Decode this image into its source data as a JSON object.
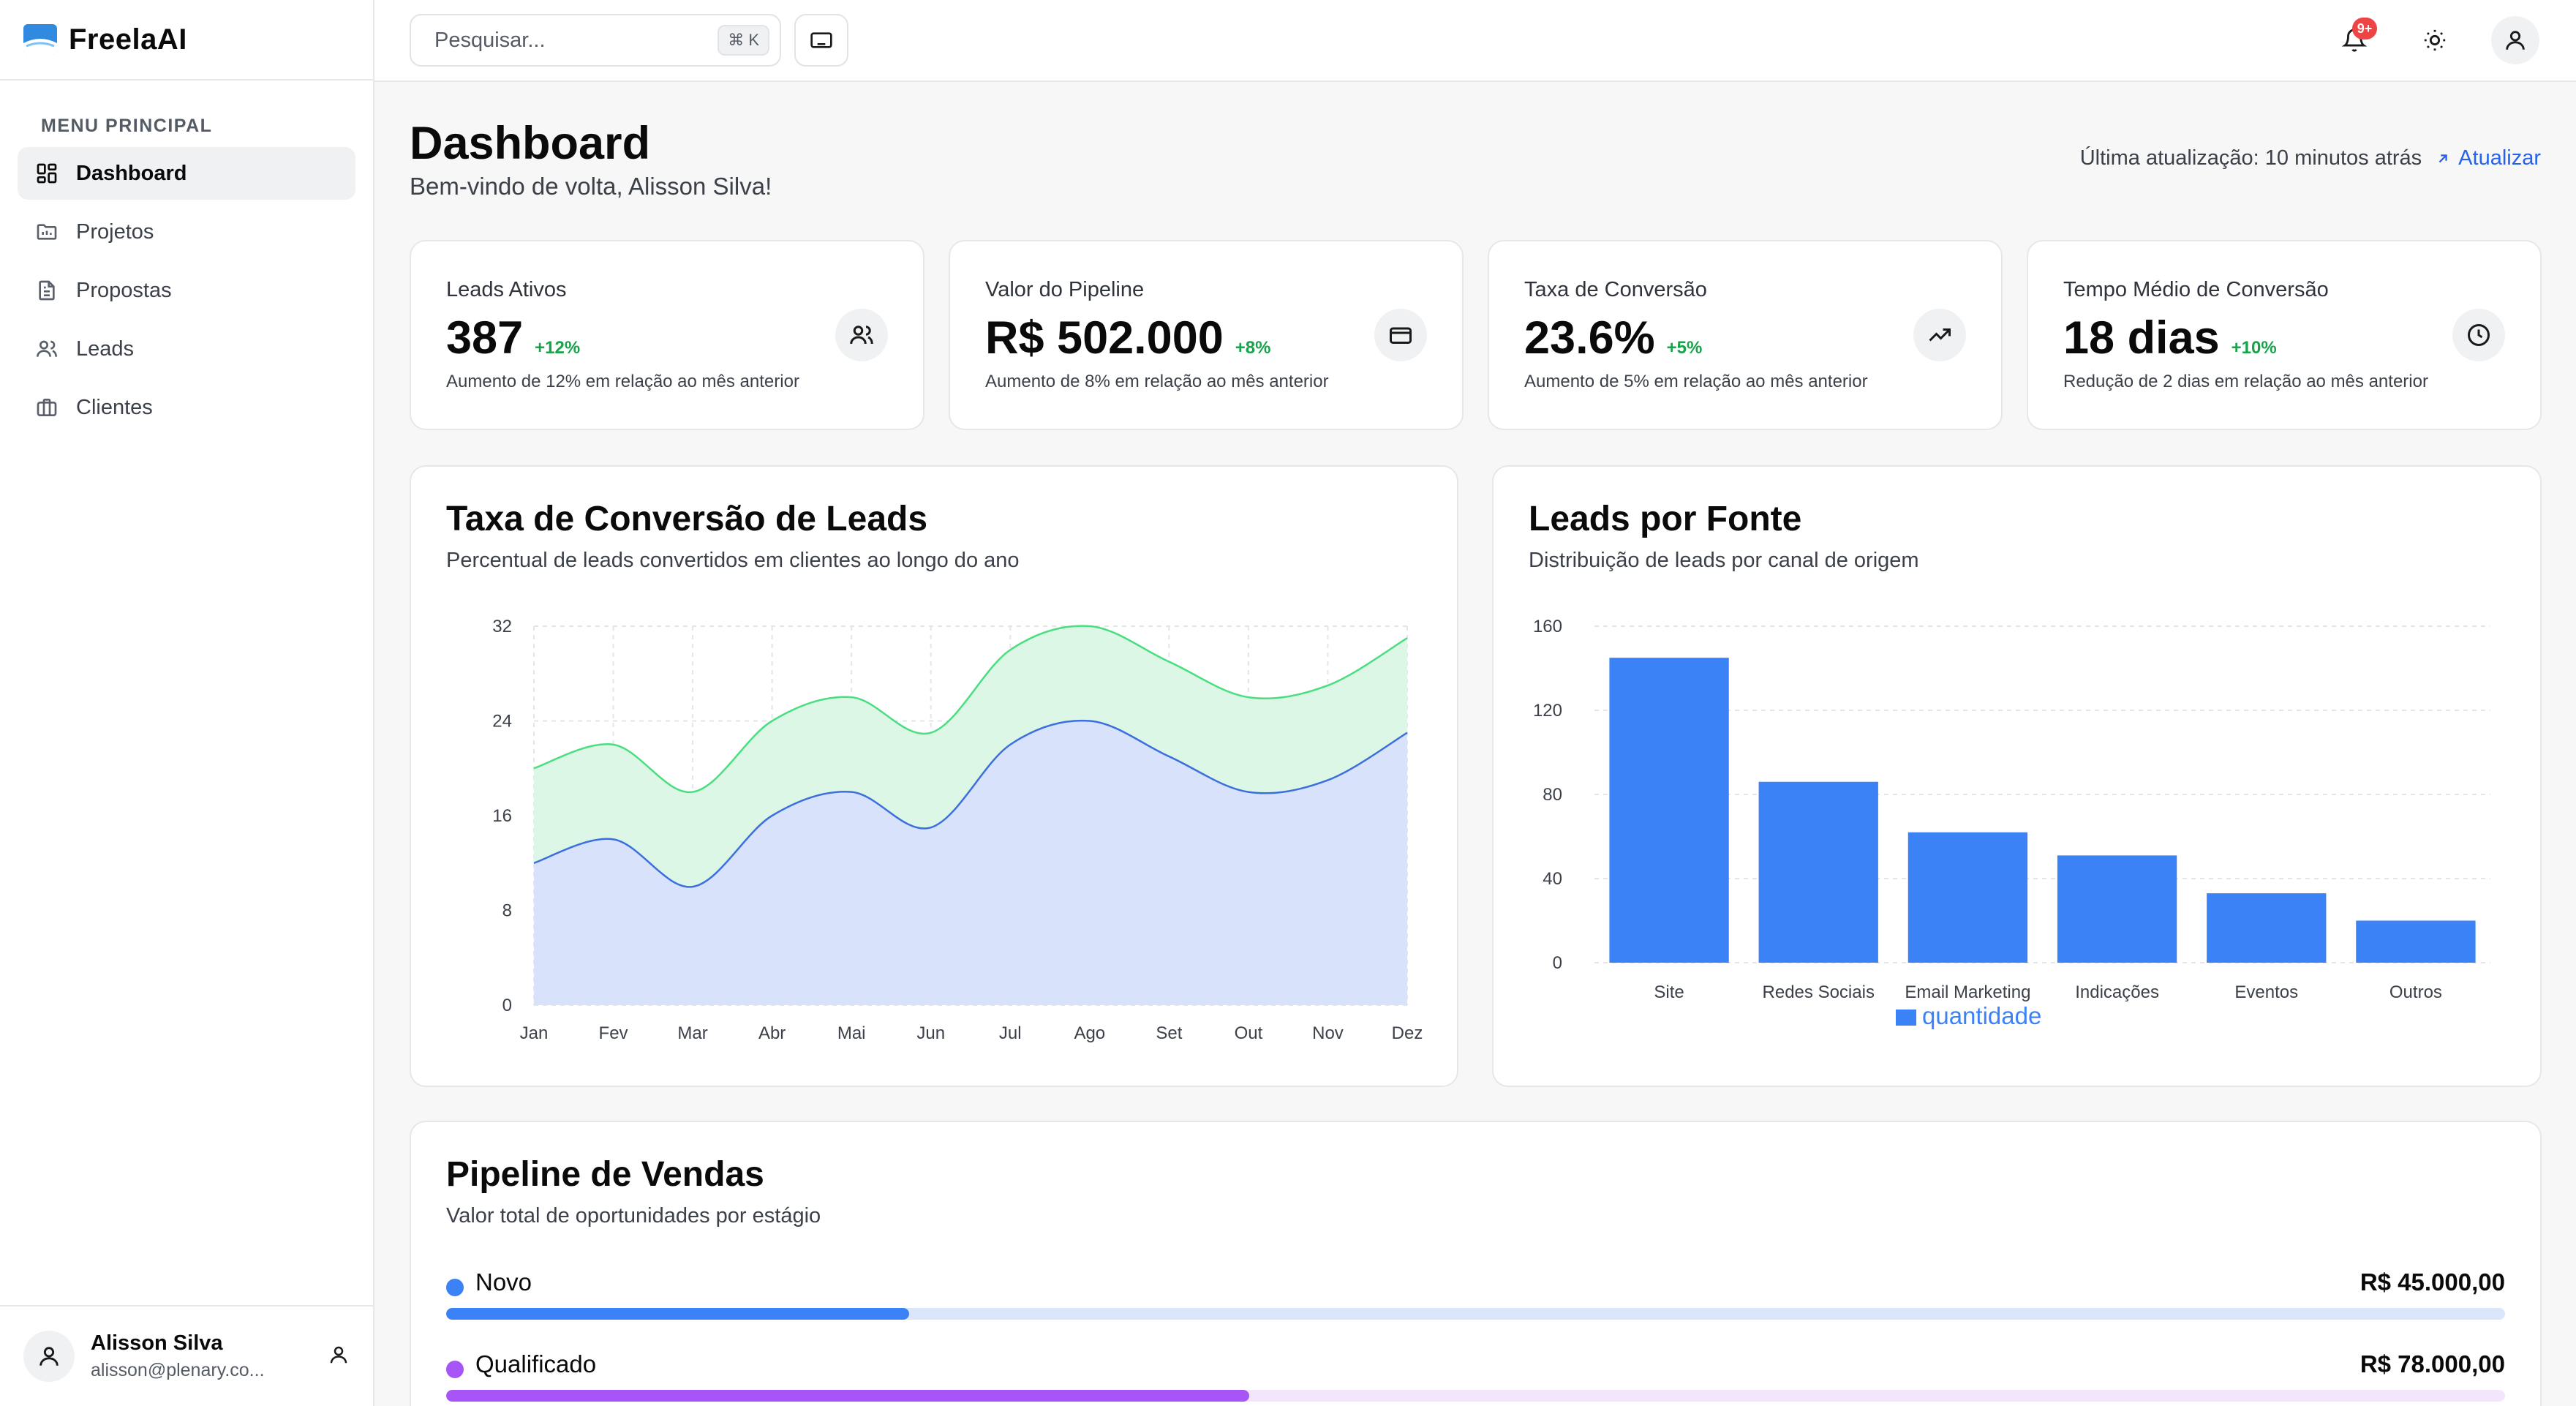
{
  "app": {
    "name": "FreelaAI"
  },
  "sidebar": {
    "section_label": "MENU PRINCIPAL",
    "items": [
      {
        "label": "Dashboard",
        "icon": "dashboard-icon",
        "active": true
      },
      {
        "label": "Projetos",
        "icon": "folder-icon",
        "active": false
      },
      {
        "label": "Propostas",
        "icon": "document-icon",
        "active": false
      },
      {
        "label": "Leads",
        "icon": "users-icon",
        "active": false
      },
      {
        "label": "Clientes",
        "icon": "briefcase-icon",
        "active": false
      }
    ],
    "user": {
      "name": "Alisson Silva",
      "email": "alisson@plenary.co..."
    }
  },
  "topbar": {
    "search_placeholder": "Pesquisar...",
    "search_shortcut": "⌘ K",
    "notification_count": "9+"
  },
  "header": {
    "title": "Dashboard",
    "subtitle": "Bem-vindo de volta, Alisson Silva!",
    "last_update": "Última atualização: 10 minutos atrás",
    "refresh_label": "Atualizar"
  },
  "stats": [
    {
      "label": "Leads Ativos",
      "value": "387",
      "change": "+12%",
      "desc": "Aumento de 12% em relação ao mês anterior",
      "icon": "users-icon"
    },
    {
      "label": "Valor do Pipeline",
      "value": "R$ 502.000",
      "change": "+8%",
      "desc": "Aumento de 8% em relação ao mês anterior",
      "icon": "credit-card-icon"
    },
    {
      "label": "Taxa de Conversão",
      "value": "23.6%",
      "change": "+5%",
      "desc": "Aumento de 5% em relação ao mês anterior",
      "icon": "trending-up-icon"
    },
    {
      "label": "Tempo Médio de Conversão",
      "value": "18 dias",
      "change": "+10%",
      "desc": "Redução de 2 dias em relação ao mês anterior",
      "icon": "clock-icon"
    }
  ],
  "conversion_chart": {
    "title": "Taxa de Conversão de Leads",
    "subtitle": "Percentual de leads convertidos em clientes ao longo do ano"
  },
  "source_chart": {
    "title": "Leads por Fonte",
    "subtitle": "Distribuição de leads por canal de origem"
  },
  "pipeline": {
    "title": "Pipeline de Vendas",
    "subtitle": "Valor total de oportunidades por estágio",
    "stages": [
      {
        "name": "Novo",
        "value": "R$ 45.000,00",
        "fraction": 0.225,
        "color": "#3b82f6",
        "track": "#dbe6fb"
      },
      {
        "name": "Qualificado",
        "value": "R$ 78.000,00",
        "fraction": 0.39,
        "color": "#a855f7",
        "track": "#f1e6fc"
      }
    ]
  },
  "chart_data": [
    {
      "type": "area",
      "categories": [
        "Jan",
        "Fev",
        "Mar",
        "Abr",
        "Mai",
        "Jun",
        "Jul",
        "Ago",
        "Set",
        "Out",
        "Nov",
        "Dez"
      ],
      "series": [
        {
          "values": [
            12,
            14,
            10,
            16,
            18,
            15,
            22,
            24,
            21,
            18,
            19,
            23
          ],
          "color": "#3b6fe0",
          "fill": "#d8e2fa"
        },
        {
          "values": [
            20,
            22,
            18,
            24,
            26,
            23,
            30,
            32,
            29,
            26,
            27,
            31
          ],
          "color": "#4ade80",
          "fill": "#dcf7e6"
        }
      ],
      "ylim": [
        0,
        32
      ],
      "yticks": [
        0,
        8,
        16,
        24,
        32
      ],
      "grid": true,
      "stacked_display": "overlay"
    },
    {
      "type": "bar",
      "categories": [
        "Site",
        "Redes Sociais",
        "Email Marketing",
        "Indicações",
        "Eventos",
        "Outros"
      ],
      "series": [
        {
          "name": "quantidade",
          "values": [
            145,
            86,
            62,
            51,
            33,
            20
          ],
          "color": "#3b82f6"
        }
      ],
      "ylim": [
        0,
        160
      ],
      "yticks": [
        0,
        40,
        80,
        120,
        160
      ],
      "grid": true,
      "legend": "bottom"
    }
  ]
}
